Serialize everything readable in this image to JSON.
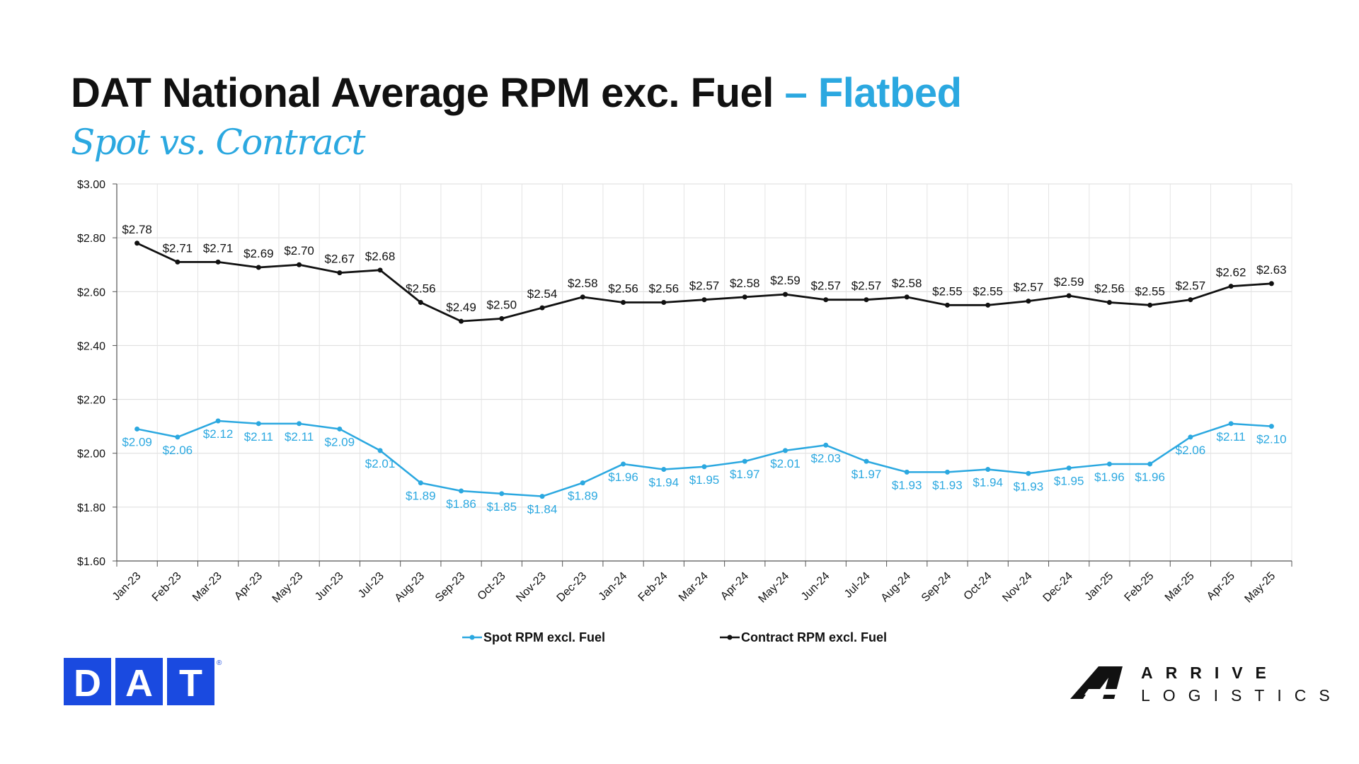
{
  "title": {
    "main": "DAT National Average RPM exc. Fuel",
    "accent": "– Flatbed",
    "subtitle": "Spot vs. Contract"
  },
  "colors": {
    "spot": "#2ba8e0",
    "contract": "#111111",
    "dat_blue": "#1a4ae0",
    "accent": "#2ba8e0"
  },
  "logos": {
    "dat": "DAT",
    "dat_mark": "®",
    "arrive_top": "ARRIVE",
    "arrive_bottom": "LOGISTICS"
  },
  "chart_data": {
    "type": "line",
    "categories": [
      "Jan-23",
      "Feb-23",
      "Mar-23",
      "Apr-23",
      "May-23",
      "Jun-23",
      "Jul-23",
      "Aug-23",
      "Sep-23",
      "Oct-23",
      "Nov-23",
      "Dec-23",
      "Jan-24",
      "Feb-24",
      "Mar-24",
      "Apr-24",
      "May-24",
      "Jun-24",
      "Jul-24",
      "Aug-24",
      "Sep-24",
      "Oct-24",
      "Nov-24",
      "Dec-24",
      "Jan-25",
      "Feb-25",
      "Mar-25",
      "Apr-25",
      "May-25"
    ],
    "series": [
      {
        "name": "Spot RPM excl. Fuel",
        "values": [
          2.09,
          2.06,
          2.12,
          2.11,
          2.11,
          2.09,
          2.01,
          1.89,
          1.86,
          1.85,
          1.84,
          1.89,
          1.96,
          1.94,
          1.95,
          1.97,
          2.01,
          2.03,
          1.97,
          1.93,
          1.93,
          1.94,
          1.925,
          1.945,
          1.96,
          1.96,
          2.06,
          2.11,
          2.1
        ],
        "labels": [
          "$2.09",
          "$2.06",
          "$2.12",
          "$2.11",
          "$2.11",
          "$2.09",
          "$2.01",
          "$1.89",
          "$1.86",
          "$1.85",
          "$1.84",
          "$1.89",
          "$1.96",
          "$1.94",
          "$1.95",
          "$1.97",
          "$2.01",
          "$2.03",
          "$1.97",
          "$1.93",
          "$1.93",
          "$1.94",
          "$1.93",
          "$1.95",
          "$1.96",
          "$1.96",
          "$2.06",
          "$2.11",
          "$2.10"
        ]
      },
      {
        "name": "Contract RPM excl. Fuel",
        "values": [
          2.78,
          2.71,
          2.71,
          2.69,
          2.7,
          2.67,
          2.68,
          2.56,
          2.49,
          2.5,
          2.54,
          2.58,
          2.56,
          2.56,
          2.57,
          2.58,
          2.59,
          2.57,
          2.57,
          2.58,
          2.55,
          2.55,
          2.565,
          2.585,
          2.56,
          2.55,
          2.57,
          2.62,
          2.63
        ],
        "labels": [
          "$2.78",
          "$2.71",
          "$2.71",
          "$2.69",
          "$2.70",
          "$2.67",
          "$2.68",
          "$2.56",
          "$2.49",
          "$2.50",
          "$2.54",
          "$2.58",
          "$2.56",
          "$2.56",
          "$2.57",
          "$2.58",
          "$2.59",
          "$2.57",
          "$2.57",
          "$2.58",
          "$2.55",
          "$2.55",
          "$2.57",
          "$2.59",
          "$2.56",
          "$2.55",
          "$2.57",
          "$2.62",
          "$2.63"
        ]
      }
    ],
    "y_ticks": [
      "$1.60",
      "$1.80",
      "$2.00",
      "$2.20",
      "$2.40",
      "$2.60",
      "$2.80",
      "$3.00"
    ],
    "ylim": [
      1.6,
      3.0
    ],
    "grid": true,
    "legend_position": "bottom"
  }
}
